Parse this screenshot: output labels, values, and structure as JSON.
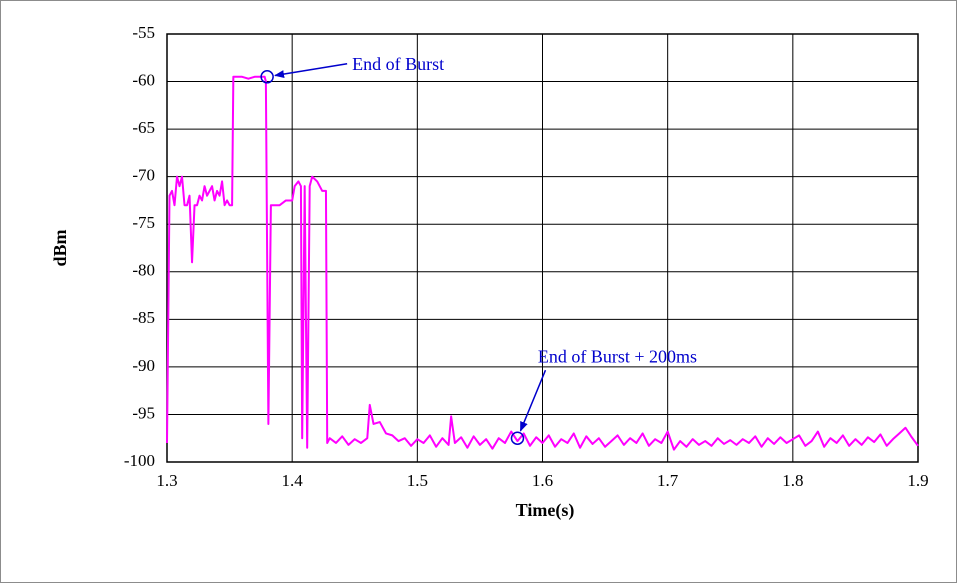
{
  "chart_data": {
    "type": "line",
    "x_label": "Time(s)",
    "y_label": "dBm",
    "xlim": [
      1.3,
      1.9
    ],
    "ylim": [
      -100,
      -55
    ],
    "xticks": [
      1.3,
      1.4,
      1.5,
      1.6,
      1.7,
      1.8,
      1.9
    ],
    "yticks": [
      -55,
      -60,
      -65,
      -70,
      -75,
      -80,
      -85,
      -90,
      -95,
      -100
    ],
    "grid": true,
    "series": [
      {
        "color": "#ff00ff",
        "x": [
          1.3,
          1.302,
          1.304,
          1.306,
          1.308,
          1.31,
          1.312,
          1.314,
          1.316,
          1.318,
          1.32,
          1.322,
          1.324,
          1.326,
          1.328,
          1.33,
          1.332,
          1.334,
          1.336,
          1.338,
          1.34,
          1.342,
          1.344,
          1.346,
          1.348,
          1.35,
          1.352,
          1.353,
          1.36,
          1.365,
          1.37,
          1.375,
          1.378,
          1.379,
          1.381,
          1.383,
          1.39,
          1.395,
          1.4,
          1.402,
          1.405,
          1.407,
          1.408,
          1.41,
          1.412,
          1.414,
          1.416,
          1.42,
          1.424,
          1.427,
          1.428,
          1.43,
          1.435,
          1.44,
          1.445,
          1.45,
          1.455,
          1.46,
          1.462,
          1.465,
          1.47,
          1.475,
          1.48,
          1.485,
          1.49,
          1.495,
          1.5,
          1.505,
          1.51,
          1.515,
          1.52,
          1.525,
          1.527,
          1.53,
          1.535,
          1.54,
          1.545,
          1.55,
          1.555,
          1.56,
          1.565,
          1.57,
          1.575,
          1.58,
          1.585,
          1.59,
          1.595,
          1.6,
          1.605,
          1.61,
          1.615,
          1.62,
          1.625,
          1.63,
          1.635,
          1.64,
          1.645,
          1.65,
          1.655,
          1.66,
          1.665,
          1.67,
          1.675,
          1.68,
          1.685,
          1.69,
          1.695,
          1.7,
          1.705,
          1.71,
          1.715,
          1.72,
          1.725,
          1.73,
          1.735,
          1.74,
          1.745,
          1.75,
          1.755,
          1.76,
          1.765,
          1.77,
          1.775,
          1.78,
          1.785,
          1.79,
          1.795,
          1.8,
          1.805,
          1.81,
          1.815,
          1.82,
          1.825,
          1.83,
          1.835,
          1.84,
          1.845,
          1.85,
          1.855,
          1.86,
          1.865,
          1.87,
          1.875,
          1.88,
          1.885,
          1.89,
          1.895,
          1.9
        ],
        "values": [
          -98,
          -72,
          -71.5,
          -73,
          -70,
          -71,
          -70,
          -73,
          -73,
          -72,
          -79,
          -73,
          -73,
          -72,
          -72.5,
          -71,
          -72,
          -71.5,
          -71,
          -72.5,
          -71.5,
          -72,
          -70.5,
          -73,
          -72.5,
          -73,
          -73,
          -59.5,
          -59.5,
          -59.7,
          -59.5,
          -59.5,
          -59.5,
          -60,
          -96,
          -73,
          -73,
          -72.5,
          -72.5,
          -71,
          -70.5,
          -71,
          -97.5,
          -71,
          -98.5,
          -71,
          -70,
          -70.5,
          -71.5,
          -71.5,
          -98,
          -97.5,
          -98,
          -97.3,
          -98.2,
          -97.6,
          -98,
          -97.5,
          -94,
          -96,
          -95.8,
          -97,
          -97.2,
          -97.8,
          -97.5,
          -98.3,
          -97.6,
          -98,
          -97.2,
          -98.4,
          -97.5,
          -98.2,
          -95.2,
          -98,
          -97.4,
          -98.5,
          -97.3,
          -98.2,
          -97.6,
          -98.6,
          -97.5,
          -98,
          -96.8,
          -97.8,
          -97,
          -98.3,
          -97.4,
          -98,
          -97.2,
          -98.4,
          -97.6,
          -98,
          -97,
          -98.5,
          -97.3,
          -98.1,
          -97.5,
          -98.4,
          -97.8,
          -97.2,
          -98.2,
          -97.5,
          -98,
          -97,
          -98.3,
          -97.6,
          -98,
          -96.8,
          -98.7,
          -97.8,
          -98.4,
          -97.6,
          -98.2,
          -97.8,
          -98.3,
          -97.5,
          -98.1,
          -97.7,
          -98.2,
          -97.6,
          -98,
          -97.3,
          -98.4,
          -97.5,
          -98.1,
          -97.4,
          -98,
          -97.6,
          -97.2,
          -98.3,
          -97.8,
          -96.8,
          -98.4,
          -97.5,
          -98,
          -97.2,
          -98.3,
          -97.6,
          -98.2,
          -97.4,
          -97.9,
          -97.1,
          -98.3,
          -97.6,
          -97,
          -96.4,
          -97.4,
          -98.3
        ]
      }
    ],
    "annotations": [
      {
        "text": "End of Burst",
        "x": 1.38,
        "y": -59.5
      },
      {
        "text": "End of Burst + 200ms",
        "x": 1.58,
        "y": -97.5
      }
    ]
  }
}
